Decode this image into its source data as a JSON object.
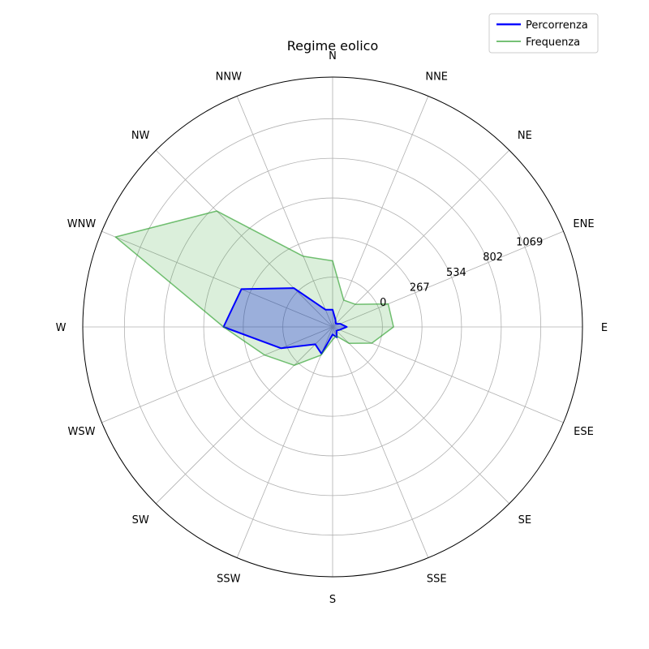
{
  "chart_data": {
    "type": "radar",
    "title": "Regime eolico",
    "directions": [
      "N",
      "NNE",
      "NE",
      "ENE",
      "E",
      "ESE",
      "SE",
      "SSE",
      "S",
      "SSW",
      "SW",
      "WSW",
      "W",
      "WNW",
      "NW",
      "NNW"
    ],
    "theta_direction": "clockwise from N",
    "r_ticks": [
      "0",
      "267",
      "534",
      "802",
      "1069"
    ],
    "r_tick_values": [
      0,
      267,
      534,
      802,
      1069
    ],
    "rlim": [
      -336,
      1350
    ],
    "grid": true,
    "legend_position": "top-right",
    "series": [
      {
        "name": "Percorrenza",
        "color": "#0000ff",
        "fill_color": "#0000ff",
        "values": [
          -220,
          -285,
          -305,
          -280,
          -240,
          -285,
          -300,
          -260,
          -285,
          -140,
          -170,
          40,
          400,
          330,
          35,
          -210
        ]
      },
      {
        "name": "Frequenza",
        "color": "#2ca02c",
        "fill_color": "#2ca02c",
        "values": [
          110,
          -140,
          -120,
          70,
          75,
          -50,
          -180,
          -270,
          -250,
          -130,
          30,
          160,
          400,
          1250,
          770,
          180
        ]
      }
    ]
  }
}
